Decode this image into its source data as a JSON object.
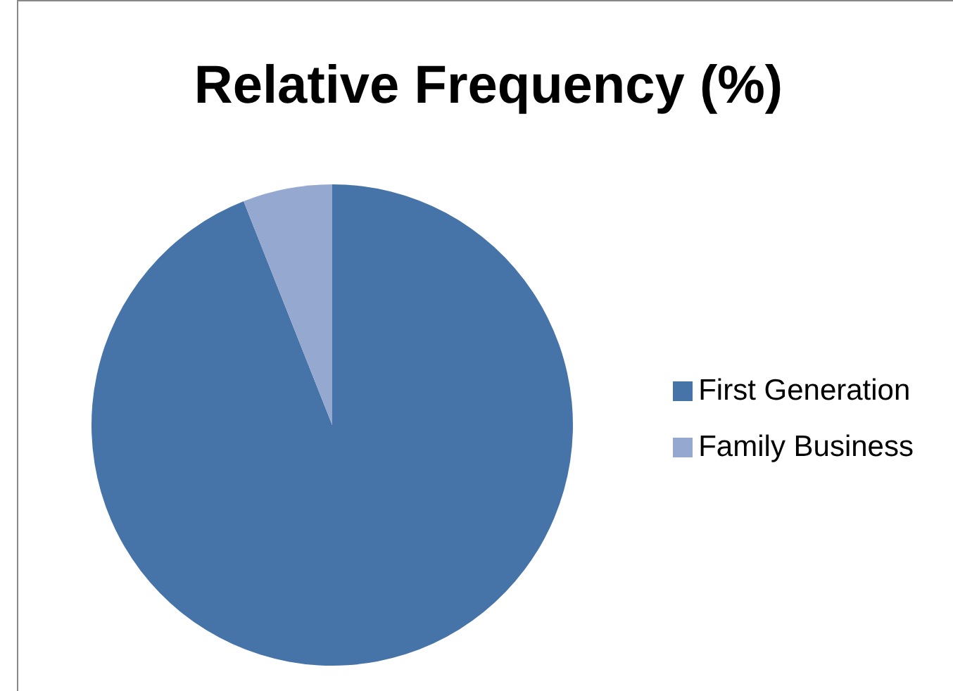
{
  "chart_data": {
    "type": "pie",
    "title": "Relative Frequency (%)",
    "categories": [
      "First Generation",
      "Family Business"
    ],
    "values": [
      94,
      6
    ],
    "colors": [
      "#4674a8",
      "#94a8d0"
    ],
    "legend": "right"
  }
}
